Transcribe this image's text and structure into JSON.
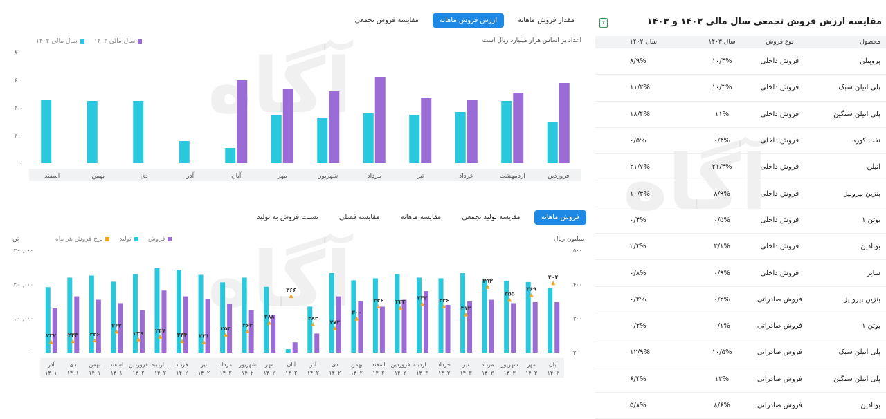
{
  "top_tabs": [
    "مقدار فروش ماهانه",
    "ارزش فروش ماهانه",
    "مقایسه فروش تجمعی"
  ],
  "top_tabs_active": 1,
  "top_note": "اعداد بر اساس هزار میلیارد ریال است",
  "top_legend": [
    {
      "label": "سال مالی ۱۴۰۳",
      "color": "#9b6bd6"
    },
    {
      "label": "سال مالی ۱۴۰۲",
      "color": "#2ac8dc"
    }
  ],
  "bottom_tabs": [
    "فروش ماهانه",
    "مقایسه تولید تجمعی",
    "مقایسه ماهانه",
    "مقایسه فصلی",
    "نسبت فروش به تولید"
  ],
  "bottom_tabs_active": 0,
  "bottom_legend": [
    {
      "label": "فروش",
      "color": "#9b6bd6"
    },
    {
      "label": "تولید",
      "color": "#2ac8dc"
    },
    {
      "label": "نرخ فروش هر ماه",
      "color": "#f5a623"
    }
  ],
  "bottom_left_unit": "تن",
  "bottom_right_unit": "میلیون ریال",
  "table": {
    "title": "مقایسه ارزش فروش تجمعی سال مالی ۱۴۰۲ و ۱۴۰۳",
    "export_icon": "excel-icon",
    "headers": [
      "محصول",
      "نوع فروش",
      "سال ۱۴۰۳",
      "سال ۱۴۰۲"
    ],
    "rows": [
      [
        "پروپیلن",
        "فروش داخلی",
        "۱۰/۴%",
        "۸/۹%"
      ],
      [
        "پلی اتیلن سبک",
        "فروش داخلی",
        "۱۰/۳%",
        "۱۱/۳%"
      ],
      [
        "پلی اتیلن سنگین",
        "فروش داخلی",
        "۱۱%",
        "۱۸/۴%"
      ],
      [
        "نفت کوره",
        "فروش داخلی",
        "۰/۴%",
        "۰/۵%"
      ],
      [
        "اتیلن",
        "فروش داخلی",
        "۲۱/۴%",
        "۲۱/۷%"
      ],
      [
        "بنزین پیرولیز",
        "فروش داخلی",
        "۸/۹%",
        "۱۰/۳%"
      ],
      [
        "بوتن ۱",
        "فروش داخلی",
        "۰/۵%",
        "۰/۴%"
      ],
      [
        "بوتادین",
        "فروش داخلی",
        "۳/۱%",
        "۲/۲%"
      ],
      [
        "سایر",
        "فروش داخلی",
        "۰/۹%",
        "۰/۸%"
      ],
      [
        "بنزین پیرولیز",
        "فروش صادراتی",
        "۰/۲%",
        "۰/۲%"
      ],
      [
        "بوتن ۱",
        "فروش صادراتی",
        "۰/۱%",
        "۰/۳%"
      ],
      [
        "پلی اتیلن سبک",
        "فروش صادراتی",
        "۱۰/۵%",
        "۱۲/۹%"
      ],
      [
        "پلی اتیلن سنگین",
        "فروش صادراتی",
        "۱۳%",
        "۶/۴%"
      ],
      [
        "بوتادین",
        "فروش صادراتی",
        "۸/۶%",
        "۵/۸%"
      ]
    ]
  },
  "chart_data": [
    {
      "type": "bar",
      "categories": [
        "فروردین",
        "اردیبهشت",
        "خرداد",
        "تیر",
        "مرداد",
        "شهریور",
        "مهر",
        "آبان",
        "آذر",
        "دی",
        "بهمن",
        "اسفند"
      ],
      "series": [
        {
          "name": "سال مالی ۱۴۰۲",
          "color": "#2ac8dc",
          "values": [
            30,
            45,
            37,
            35,
            36,
            33,
            35,
            11,
            16,
            45,
            45,
            46
          ]
        },
        {
          "name": "سال مالی ۱۴۰۳",
          "color": "#9b6bd6",
          "values": [
            58,
            51,
            46,
            47,
            62,
            52,
            54,
            60,
            null,
            null,
            null,
            null
          ]
        }
      ],
      "yticks": [
        "۰",
        "۲۰",
        "۴۰",
        "۶۰",
        "۸۰"
      ],
      "ylim": [
        0,
        80
      ]
    },
    {
      "type": "bar",
      "categories": [
        {
          "m": "آذر",
          "y": "۱۴۰۱"
        },
        {
          "m": "دی",
          "y": "۱۴۰۱"
        },
        {
          "m": "بهمن",
          "y": "۱۴۰۱"
        },
        {
          "m": "اسفند",
          "y": "۱۴۰۱"
        },
        {
          "m": "فروردین",
          "y": "۱۴۰۲"
        },
        {
          "m": "اردیبه...",
          "y": "۱۴۰۲"
        },
        {
          "m": "خرداد",
          "y": "۱۴۰۲"
        },
        {
          "m": "تیر",
          "y": "۱۴۰۲"
        },
        {
          "m": "مرداد",
          "y": "۱۴۰۲"
        },
        {
          "m": "شهریور",
          "y": "۱۴۰۲"
        },
        {
          "m": "مهر",
          "y": "۱۴۰۲"
        },
        {
          "m": "آبان",
          "y": "۱۴۰۲"
        },
        {
          "m": "آذر",
          "y": "۱۴۰۲"
        },
        {
          "m": "دی",
          "y": "۱۴۰۲"
        },
        {
          "m": "بهمن",
          "y": "۱۴۰۲"
        },
        {
          "m": "اسفند",
          "y": "۱۴۰۲"
        },
        {
          "m": "فروردین",
          "y": "۱۴۰۳"
        },
        {
          "m": "اردیبه...",
          "y": "۱۴۰۳"
        },
        {
          "m": "خرداد",
          "y": "۱۴۰۳"
        },
        {
          "m": "تیر",
          "y": "۱۴۰۳"
        },
        {
          "m": "مرداد",
          "y": "۱۴۰۳"
        },
        {
          "m": "شهریور",
          "y": "۱۴۰۳"
        },
        {
          "m": "مهر",
          "y": "۱۴۰۳"
        },
        {
          "m": "آبان",
          "y": "۱۴۰۳"
        }
      ],
      "series": [
        {
          "name": "تولید",
          "color": "#2ac8dc",
          "axis": "left",
          "values": [
            192000,
            220000,
            226000,
            208000,
            230000,
            248000,
            242000,
            228000,
            206000,
            220000,
            193000,
            10000,
            135000,
            233000,
            212000,
            218000,
            230000,
            220000,
            218000,
            233000,
            212000,
            211000,
            207000,
            190000
          ]
        },
        {
          "name": "فروش",
          "color": "#9b6bd6",
          "axis": "left",
          "values": [
            130000,
            165000,
            155000,
            145000,
            125000,
            182000,
            165000,
            158000,
            142000,
            125000,
            110000,
            30000,
            56000,
            165000,
            150000,
            135000,
            155000,
            180000,
            140000,
            150000,
            155000,
            145000,
            148000,
            148000
          ]
        },
        {
          "name": "نرخ فروش هر ماه",
          "color": "#f5a623",
          "axis": "right",
          "values": [
            232,
            234,
            236,
            262,
            239,
            247,
            234,
            231,
            253,
            263,
            288,
            366,
            283,
            272,
            300,
            336,
            332,
            343,
            336,
            312,
            393,
            355,
            369,
            404
          ]
        }
      ],
      "data_labels": [
        "۲۳۲",
        "۲۳۴",
        "۲۳۶",
        "۲۶۲",
        "۲۳۹",
        "۲۴۷",
        "۲۳۴",
        "۲۳۱",
        "۲۵۳",
        "۲۶۳",
        "۲۸۸",
        "۳۶۶",
        "۲۸۳",
        "۲۷۲",
        "۳۰۰",
        "۳۳۶",
        "۳۳۲",
        "۳۴۳",
        "۳۳۶",
        "۳۱۲",
        "۳۹۳",
        "۳۵۵",
        "۳۶۹",
        "۴۰۴"
      ],
      "yticks_left": [
        "۰",
        "۱۰۰,۰۰۰",
        "۲۰۰,۰۰۰",
        "۳۰۰,۰۰۰"
      ],
      "ylim_left": [
        0,
        300000
      ],
      "yticks_right": [
        "۲۰۰",
        "۳۰۰",
        "۴۰۰",
        "۵۰۰"
      ],
      "ylim_right": [
        200,
        500
      ]
    }
  ]
}
